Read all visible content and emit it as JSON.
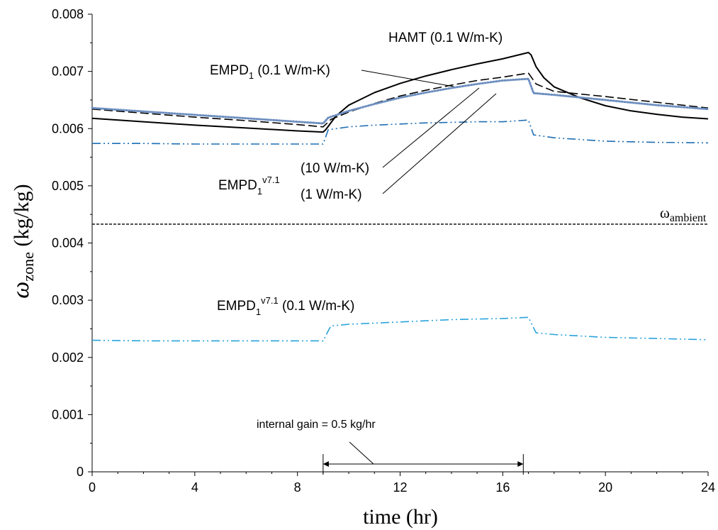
{
  "chart_data": {
    "type": "line",
    "xlabel": "time (hr)",
    "ylabel": {
      "symbol": "ω",
      "subscript": "zone",
      "units": " (kg/kg)"
    },
    "xlim": [
      0,
      24
    ],
    "ylim": [
      0,
      0.008
    ],
    "xticks": [
      0,
      4,
      8,
      12,
      16,
      20,
      24
    ],
    "yticks": [
      0,
      0.001,
      0.002,
      0.003,
      0.004,
      0.005,
      0.006,
      0.007,
      0.008
    ],
    "xtick_labels": [
      "0",
      "4",
      "8",
      "12",
      "16",
      "20",
      "24"
    ],
    "ytick_labels": [
      "0",
      "0.001",
      "0.002",
      "0.003",
      "0.004",
      "0.005",
      "0.006",
      "0.007",
      "0.008"
    ],
    "grid": false,
    "legend": "none",
    "series": [
      {
        "color": "#000000",
        "style": "solid",
        "x": [
          0,
          2,
          4,
          6,
          8,
          9,
          9.1,
          9.5,
          10,
          11,
          12,
          13,
          14,
          15,
          16,
          17,
          17.1,
          17.3,
          17.6,
          18,
          19,
          20,
          21,
          22,
          23,
          24
        ],
        "y": [
          0.00618,
          0.00612,
          0.00606,
          0.00601,
          0.00596,
          0.00594,
          0.00598,
          0.00622,
          0.00641,
          0.00663,
          0.00679,
          0.00692,
          0.00703,
          0.00713,
          0.00722,
          0.00733,
          0.00729,
          0.00708,
          0.00689,
          0.00673,
          0.00654,
          0.0064,
          0.00631,
          0.00625,
          0.0062,
          0.00617
        ]
      },
      {
        "color": "#000000",
        "style": "dashed",
        "x": [
          0,
          2,
          4,
          6,
          8,
          9,
          9.3,
          10,
          11,
          12,
          13,
          14,
          15,
          16,
          17,
          17.3,
          18,
          20,
          22,
          24
        ],
        "y": [
          0.00634,
          0.00627,
          0.0062,
          0.00614,
          0.00607,
          0.00603,
          0.00616,
          0.00629,
          0.00644,
          0.00657,
          0.00667,
          0.00676,
          0.00684,
          0.0069,
          0.00697,
          0.00678,
          0.00665,
          0.00656,
          0.00646,
          0.00636
        ]
      },
      {
        "color": "#6d8fc0",
        "style": "dotted",
        "x": [
          0,
          2,
          4,
          6,
          8,
          9,
          9.2,
          10,
          11,
          12,
          13,
          14,
          15,
          16,
          17,
          17.2,
          18,
          20,
          22,
          24
        ],
        "y": [
          0.00636,
          0.0063,
          0.00624,
          0.00618,
          0.00612,
          0.00609,
          0.00619,
          0.00631,
          0.00643,
          0.00654,
          0.00663,
          0.00671,
          0.00678,
          0.00684,
          0.00687,
          0.00662,
          0.00659,
          0.0065,
          0.00641,
          0.00634
        ]
      },
      {
        "color": "#1f6fb4",
        "style": "dashdotdot",
        "x": [
          0,
          2,
          4,
          6,
          8,
          9,
          9.2,
          10,
          11,
          12,
          13,
          14,
          15,
          16,
          17,
          17.2,
          18,
          20,
          22,
          24
        ],
        "y": [
          0.00574,
          0.00574,
          0.00573,
          0.00573,
          0.00573,
          0.00573,
          0.00598,
          0.00603,
          0.00606,
          0.00608,
          0.0061,
          0.00611,
          0.00612,
          0.00612,
          0.00615,
          0.00589,
          0.00584,
          0.00578,
          0.00576,
          0.00575
        ]
      },
      {
        "color": "#2aa3dc",
        "style": "dashdotdot",
        "x": [
          0,
          2,
          4,
          6,
          8,
          9,
          9.3,
          10,
          11,
          12,
          13,
          14,
          15,
          16,
          17,
          17.3,
          18,
          20,
          22,
          24
        ],
        "y": [
          0.0023,
          0.00229,
          0.00229,
          0.00229,
          0.00229,
          0.00229,
          0.00255,
          0.00258,
          0.0026,
          0.00262,
          0.00264,
          0.00266,
          0.00267,
          0.00268,
          0.0027,
          0.00243,
          0.0024,
          0.00235,
          0.00233,
          0.00231
        ]
      }
    ],
    "reference_line": {
      "y": 0.00433,
      "color": "#000000",
      "style": "dashed",
      "label": {
        "symbol": "ω",
        "subscript": "ambient"
      }
    },
    "annotations": {
      "hamt": "HAMT (0.1 W/m-K)",
      "empd1_prefix": "EMPD",
      "empd1_sub": "1",
      "empd1_suffix": " (0.1 W/m-K)",
      "empd_v71_prefix": "EMPD",
      "empd_v71_sub": "1",
      "empd_v71_sup": "v7.1",
      "ten": "(10 W/m-K)",
      "one": "(1 W/m-K)",
      "low_prefix": "EMPD",
      "low_sub": "1",
      "low_sup": "v7.1",
      "low_suffix": " (0.1 W/m-K)",
      "gain": "internal gain = 0.5 kg/hr"
    },
    "gain_interval": [
      9,
      16.8
    ]
  }
}
